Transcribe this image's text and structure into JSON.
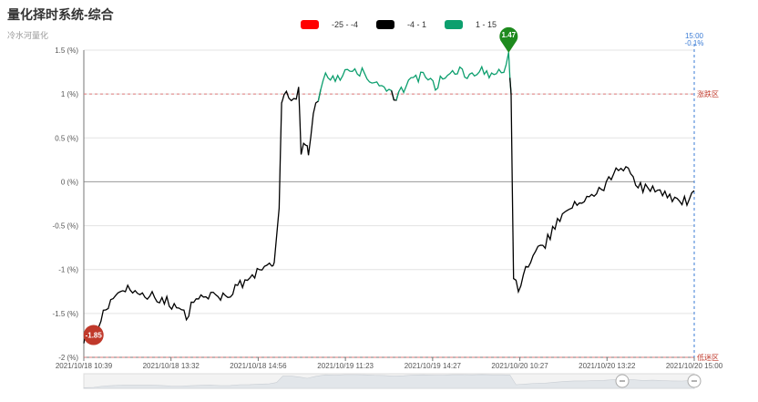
{
  "header": {
    "title": "量化择时系统-综合",
    "subtitle": "冷水河量化"
  },
  "legend": [
    {
      "label": "-25 - -4",
      "color": "#ff0000"
    },
    {
      "label": "-4 - 1",
      "color": "#000000"
    },
    {
      "label": "1 - 15",
      "color": "#0d9f6e"
    }
  ],
  "chart_data": {
    "type": "line",
    "ylabel_unit": "(%)",
    "ylim": [
      -2,
      1.5
    ],
    "yticks": [
      1.5,
      1,
      0.5,
      0,
      -0.5,
      -1,
      -1.5,
      -2
    ],
    "ytick_labels": [
      "1.5 (%)",
      "1 (%)",
      "0.5 (%)",
      "0 (%)",
      "-0.5 (%)",
      "-1 (%)",
      "-1.5 (%)",
      "-2 (%)"
    ],
    "xtick_labels": [
      "2021/10/18 10:39",
      "2021/10/18 13:32",
      "2021/10/18 14:56",
      "2021/10/19 11:23",
      "2021/10/19 14:27",
      "2021/10/20 10:27",
      "2021/10/20 13:22",
      "2021/10/20 15:00"
    ],
    "series_points": [
      [
        0,
        -1.78
      ],
      [
        0.01,
        -1.72
      ],
      [
        0.02,
        -1.8
      ],
      [
        0.03,
        -1.62
      ],
      [
        0.05,
        -1.4
      ],
      [
        0.07,
        -1.28
      ],
      [
        0.09,
        -1.2
      ],
      [
        0.11,
        -1.32
      ],
      [
        0.13,
        -1.28
      ],
      [
        0.15,
        -1.34
      ],
      [
        0.17,
        -1.36
      ],
      [
        0.19,
        -1.44
      ],
      [
        0.21,
        -1.54
      ],
      [
        0.23,
        -1.32
      ],
      [
        0.25,
        -1.3
      ],
      [
        0.27,
        -1.28
      ],
      [
        0.29,
        -1.34
      ],
      [
        0.31,
        -1.2
      ],
      [
        0.33,
        -1.16
      ],
      [
        0.35,
        -1.06
      ],
      [
        0.37,
        -1.0
      ],
      [
        0.385,
        -0.96
      ],
      [
        0.39,
        -0.92
      ],
      [
        0.4,
        -0.3
      ],
      [
        0.405,
        0.9
      ],
      [
        0.41,
        1.0
      ],
      [
        0.42,
        0.95
      ],
      [
        0.43,
        0.9
      ],
      [
        0.44,
        1.08
      ],
      [
        0.445,
        0.32
      ],
      [
        0.455,
        0.45
      ],
      [
        0.46,
        0.32
      ],
      [
        0.47,
        0.8
      ],
      [
        0.48,
        0.95
      ],
      [
        0.49,
        1.2
      ],
      [
        0.5,
        1.22
      ],
      [
        0.52,
        1.18
      ],
      [
        0.54,
        1.25
      ],
      [
        0.56,
        1.28
      ],
      [
        0.58,
        1.22
      ],
      [
        0.6,
        1.1
      ],
      [
        0.62,
        1.0
      ],
      [
        0.64,
        0.98
      ],
      [
        0.66,
        1.1
      ],
      [
        0.68,
        1.18
      ],
      [
        0.7,
        1.22
      ],
      [
        0.72,
        1.1
      ],
      [
        0.74,
        1.2
      ],
      [
        0.76,
        1.28
      ],
      [
        0.78,
        1.22
      ],
      [
        0.8,
        1.25
      ],
      [
        0.82,
        1.26
      ],
      [
        0.84,
        1.22
      ],
      [
        0.86,
        1.3
      ],
      [
        0.87,
        1.47
      ],
      [
        0.875,
        1.0
      ],
      [
        0.88,
        -1.1
      ],
      [
        0.89,
        -1.25
      ],
      [
        0.9,
        -1.05
      ],
      [
        0.92,
        -0.8
      ],
      [
        0.94,
        -0.75
      ],
      [
        0.96,
        -0.55
      ],
      [
        0.98,
        -0.4
      ],
      [
        1.0,
        -0.3
      ],
      [
        1.02,
        -0.2
      ],
      [
        1.04,
        -0.15
      ],
      [
        1.06,
        -0.1
      ],
      [
        1.08,
        0.05
      ],
      [
        1.1,
        0.15
      ],
      [
        1.12,
        0.08
      ],
      [
        1.14,
        -0.05
      ],
      [
        1.16,
        -0.1
      ],
      [
        1.18,
        -0.08
      ],
      [
        1.2,
        -0.18
      ],
      [
        1.22,
        -0.2
      ],
      [
        1.24,
        -0.25
      ],
      [
        1.25,
        -0.1
      ]
    ],
    "markers": [
      {
        "label": "-1.85",
        "value": -1.85,
        "color": "#c0392b"
      },
      {
        "label": "1.47",
        "value": 1.47,
        "color": "#1e8a1e"
      }
    ],
    "reference_lines": [
      {
        "value": 1,
        "label": "涨跌区"
      },
      {
        "value": -2,
        "label": "低迷区"
      }
    ],
    "end_annotation": {
      "time": "15:00",
      "value": "-0.1%"
    }
  },
  "colors": {
    "up_segment": "#0d9f6e",
    "main_line": "#000000",
    "ref_line": "#e07a7a",
    "end_line": "#3a7bd5"
  }
}
